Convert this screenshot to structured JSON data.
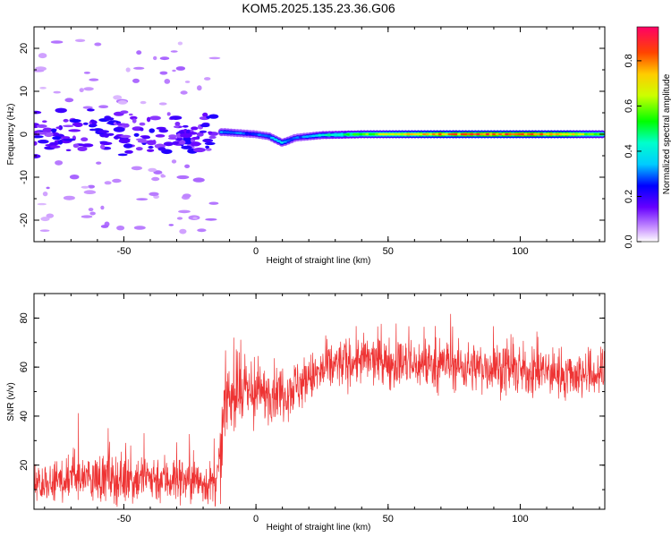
{
  "title": "KOM5.2025.135.23.36.G06",
  "chart_data": [
    {
      "type": "heatmap",
      "xlabel": "Height of straight line (km)",
      "ylabel": "Frequency (Hz)",
      "xlim": [
        -84,
        132
      ],
      "ylim": [
        -25,
        25
      ],
      "xticks": [
        -50,
        0,
        50,
        100
      ],
      "yticks": [
        -20,
        -10,
        0,
        10,
        20
      ],
      "grid": false,
      "colorbar": {
        "label": "Normalized spectral amplitude",
        "range": [
          0.0,
          0.95
        ],
        "ticks": [
          "0.0",
          "0.2",
          "0.4",
          "0.6",
          "0.8"
        ]
      },
      "description": "Amplitude concentrated near 0 Hz; scattered weak energy (violet/blue) between -84 and -15 km; coherent band from -12 km onward rising to red peaks (~0.9) between 45 and 130 km.",
      "band_profile": [
        {
          "x": -12,
          "f": 0.5,
          "amp": 0.35
        },
        {
          "x": 0,
          "f": 0.0,
          "amp": 0.3
        },
        {
          "x": 5,
          "f": -0.5,
          "amp": 0.35
        },
        {
          "x": 10,
          "f": -2.0,
          "amp": 0.4
        },
        {
          "x": 15,
          "f": -0.8,
          "amp": 0.3
        },
        {
          "x": 25,
          "f": -0.2,
          "amp": 0.45
        },
        {
          "x": 40,
          "f": 0.0,
          "amp": 0.6
        },
        {
          "x": 55,
          "f": 0.0,
          "amp": 0.75
        },
        {
          "x": 70,
          "f": 0.0,
          "amp": 0.85
        },
        {
          "x": 85,
          "f": 0.0,
          "amp": 0.9
        },
        {
          "x": 100,
          "f": 0.0,
          "amp": 0.88
        },
        {
          "x": 115,
          "f": 0.0,
          "amp": 0.85
        },
        {
          "x": 130,
          "f": 0.0,
          "amp": 0.6
        }
      ]
    },
    {
      "type": "line",
      "xlabel": "Height of straight line (km)",
      "ylabel": "SNR (v/v)",
      "xlim": [
        -84,
        132
      ],
      "ylim": [
        2,
        90
      ],
      "xticks": [
        -50,
        0,
        50,
        100
      ],
      "yticks": [
        20,
        40,
        60,
        80
      ],
      "grid": false,
      "series": [
        {
          "color": "#ee3333",
          "x": [
            -84,
            -70,
            -60,
            -50,
            -40,
            -30,
            -20,
            -15,
            -13,
            -12,
            -10,
            -5,
            0,
            5,
            10,
            15,
            20,
            25,
            30,
            40,
            50,
            60,
            70,
            80,
            90,
            100,
            110,
            120,
            132
          ],
          "y": [
            12,
            14,
            15,
            14,
            15,
            14,
            13,
            12,
            25,
            45,
            48,
            50,
            48,
            50,
            50,
            52,
            55,
            58,
            61,
            63,
            62,
            61,
            61,
            60,
            60,
            58,
            58,
            57,
            57
          ],
          "noise_amplitude": [
            6,
            7,
            8,
            8,
            8,
            8,
            7,
            7,
            12,
            12,
            10,
            10,
            9,
            9,
            9,
            9,
            8,
            8,
            8,
            8,
            8,
            8,
            8,
            8,
            8,
            8,
            8,
            8,
            8
          ]
        }
      ]
    }
  ]
}
